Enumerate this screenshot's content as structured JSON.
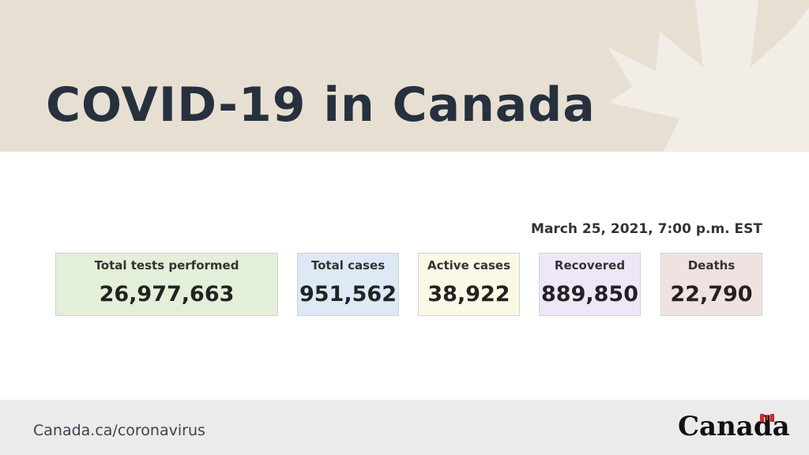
{
  "header": {
    "title": "COVID-19 in Canada"
  },
  "date": "March 25, 2021, 7:00 p.m. EST",
  "cards": [
    {
      "label": "Total tests performed",
      "value": "26,977,663"
    },
    {
      "label": "Total cases",
      "value": "951,562"
    },
    {
      "label": "Active cases",
      "value": "38,922"
    },
    {
      "label": "Recovered",
      "value": "889,850"
    },
    {
      "label": "Deaths",
      "value": "22,790"
    }
  ],
  "footer": {
    "url": "Canada.ca/coronavirus",
    "logo": "Canada"
  }
}
